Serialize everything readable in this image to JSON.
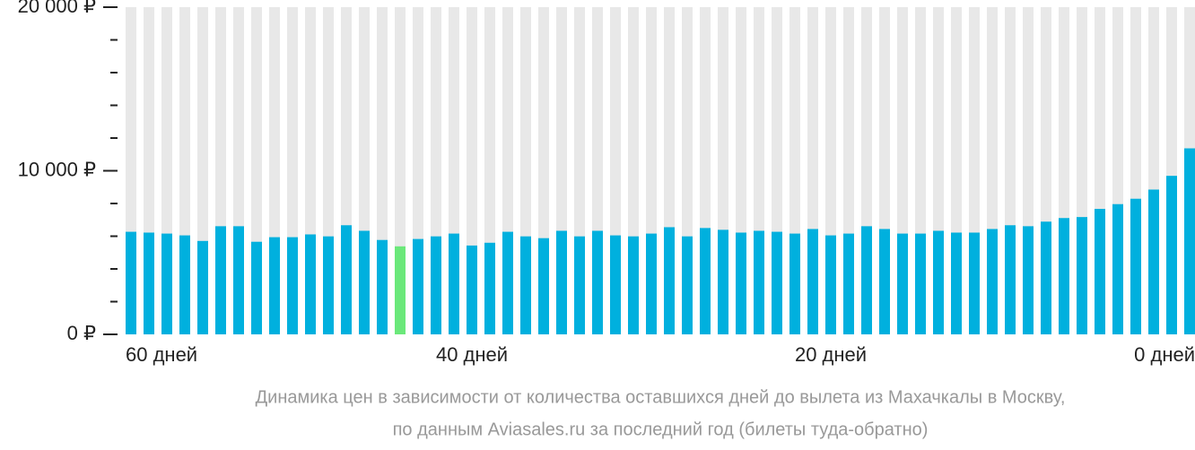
{
  "chart_data": {
    "type": "bar",
    "categories": [
      "60 дней",
      null,
      null,
      null,
      null,
      null,
      null,
      null,
      null,
      null,
      null,
      null,
      null,
      null,
      null,
      null,
      null,
      null,
      null,
      "40 дней",
      null,
      null,
      null,
      null,
      null,
      null,
      null,
      null,
      null,
      null,
      null,
      null,
      null,
      null,
      null,
      null,
      null,
      null,
      null,
      "20 дней",
      null,
      null,
      null,
      null,
      null,
      null,
      null,
      null,
      null,
      null,
      null,
      null,
      null,
      null,
      null,
      null,
      null,
      null,
      null,
      "0 дней"
    ],
    "values": [
      6270,
      6220,
      6160,
      6050,
      5710,
      6610,
      6610,
      5660,
      5940,
      5940,
      6110,
      5990,
      6670,
      6330,
      5770,
      5380,
      5830,
      5990,
      6160,
      5430,
      5600,
      6270,
      5990,
      5880,
      6330,
      5990,
      6330,
      6050,
      5990,
      6160,
      6550,
      5990,
      6500,
      6390,
      6220,
      6330,
      6270,
      6160,
      6440,
      6050,
      6160,
      6610,
      6440,
      6160,
      6160,
      6330,
      6220,
      6220,
      6440,
      6670,
      6610,
      6890,
      7110,
      7170,
      7670,
      7960,
      8290,
      8850,
      9690,
      11370
    ],
    "color": "#00b0de",
    "highlight_index": 15,
    "highlight_color": "#6be87a",
    "background_color": "#e8e8e8",
    "ylim": [
      0,
      20000
    ],
    "yticks": [
      {
        "value": 0,
        "label": "0 ₽"
      },
      {
        "value": 10000,
        "label": "10 000 ₽"
      },
      {
        "value": 20000,
        "label": "20 000 ₽"
      }
    ],
    "minor_yticks": [
      2000,
      4000,
      6000,
      8000,
      12000,
      14000,
      16000,
      18000
    ],
    "caption": [
      "Динамика цен в зависимости от количества оставшихся дней до вылета из Махачкалы в Москву,",
      "по данным Aviasales.ru за последний год (билеты туда-обратно)"
    ]
  }
}
